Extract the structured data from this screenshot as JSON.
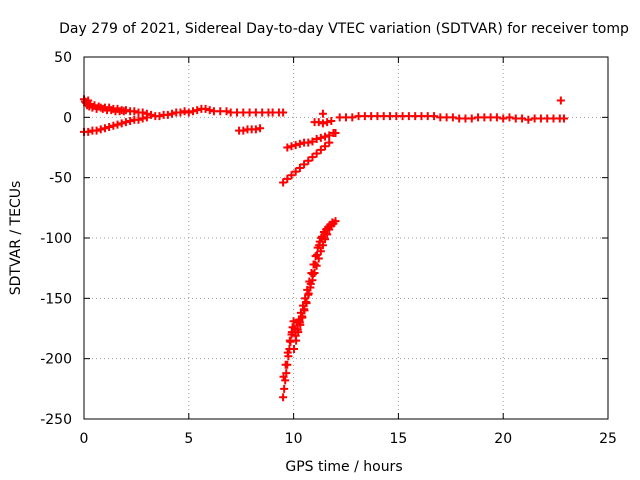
{
  "chart_data": {
    "type": "scatter",
    "title": "Day 279 of 2021, Sidereal Day-to-day VTEC variation (SDTVAR) for receiver tomp",
    "xlabel": "GPS time / hours",
    "ylabel": "SDTVAR / TECUs",
    "xlim": [
      0,
      25
    ],
    "ylim": [
      -250,
      50
    ],
    "xticks": [
      0,
      5,
      10,
      15,
      20,
      25
    ],
    "yticks": [
      -250,
      -200,
      -150,
      -100,
      -50,
      0,
      50
    ],
    "grid": true,
    "marker": "plus",
    "color": "#ff0000",
    "series": [
      {
        "points": [
          [
            0.0,
            15
          ],
          [
            0.05,
            13
          ],
          [
            0.1,
            12
          ],
          [
            0.15,
            10
          ],
          [
            0.2,
            14
          ],
          [
            0.25,
            9
          ],
          [
            0.3,
            11
          ],
          [
            0.4,
            8
          ],
          [
            0.5,
            10
          ],
          [
            0.6,
            7
          ],
          [
            0.7,
            9
          ],
          [
            0.8,
            8
          ],
          [
            0.9,
            7
          ],
          [
            1.0,
            8
          ],
          [
            1.1,
            6
          ],
          [
            1.2,
            8
          ],
          [
            1.3,
            6
          ],
          [
            1.4,
            7
          ],
          [
            1.5,
            5
          ],
          [
            1.6,
            7
          ],
          [
            1.7,
            5
          ],
          [
            1.8,
            6
          ],
          [
            1.9,
            5
          ],
          [
            2.0,
            6
          ],
          [
            2.2,
            5
          ],
          [
            2.4,
            5
          ],
          [
            2.6,
            4
          ],
          [
            2.8,
            4
          ],
          [
            3.0,
            3
          ],
          [
            3.2,
            2
          ],
          [
            3.4,
            1
          ],
          [
            3.6,
            1
          ],
          [
            3.8,
            2
          ],
          [
            4.0,
            2
          ],
          [
            4.2,
            3
          ],
          [
            4.4,
            4
          ],
          [
            4.6,
            4
          ],
          [
            4.8,
            5
          ],
          [
            5.0,
            4
          ],
          [
            5.2,
            5
          ],
          [
            5.4,
            6
          ],
          [
            5.6,
            7
          ],
          [
            5.8,
            7
          ],
          [
            6.0,
            6
          ],
          [
            6.2,
            5
          ],
          [
            6.5,
            5
          ],
          [
            6.8,
            5
          ],
          [
            7.0,
            4
          ],
          [
            7.3,
            4
          ],
          [
            7.6,
            4
          ],
          [
            7.9,
            4
          ],
          [
            8.2,
            4
          ],
          [
            8.5,
            4
          ],
          [
            8.8,
            4
          ],
          [
            9.0,
            4
          ],
          [
            9.3,
            4
          ],
          [
            9.5,
            4
          ]
        ]
      },
      {
        "points": [
          [
            0.0,
            -12
          ],
          [
            0.2,
            -12
          ],
          [
            0.4,
            -11
          ],
          [
            0.6,
            -11
          ],
          [
            0.8,
            -10
          ],
          [
            1.0,
            -9
          ],
          [
            1.2,
            -8
          ],
          [
            1.4,
            -7
          ],
          [
            1.6,
            -6
          ],
          [
            1.8,
            -5
          ],
          [
            2.0,
            -4
          ],
          [
            2.2,
            -3
          ],
          [
            2.4,
            -2
          ],
          [
            2.6,
            -2
          ],
          [
            2.8,
            -1
          ],
          [
            3.0,
            0
          ]
        ]
      },
      {
        "points": [
          [
            7.4,
            -11
          ],
          [
            7.6,
            -11
          ],
          [
            7.8,
            -10
          ],
          [
            8.0,
            -10
          ],
          [
            8.2,
            -10
          ],
          [
            8.4,
            -9
          ]
        ]
      },
      {
        "points": [
          [
            9.7,
            -25
          ],
          [
            9.9,
            -24
          ],
          [
            10.1,
            -23
          ],
          [
            10.3,
            -22
          ],
          [
            10.5,
            -21
          ],
          [
            10.7,
            -21
          ],
          [
            10.9,
            -20
          ],
          [
            11.1,
            -18
          ],
          [
            11.3,
            -17
          ],
          [
            11.5,
            -16
          ],
          [
            11.7,
            -15
          ],
          [
            11.9,
            -13
          ],
          [
            12.0,
            -13
          ]
        ]
      },
      {
        "points": [
          [
            9.5,
            -54
          ],
          [
            9.7,
            -51
          ],
          [
            9.9,
            -48
          ],
          [
            10.1,
            -45
          ],
          [
            10.3,
            -42
          ],
          [
            10.5,
            -39
          ],
          [
            10.7,
            -36
          ],
          [
            10.9,
            -33
          ],
          [
            11.1,
            -30
          ],
          [
            11.3,
            -27
          ],
          [
            11.5,
            -24
          ],
          [
            11.7,
            -21
          ]
        ]
      },
      {
        "points": [
          [
            11.0,
            -4
          ],
          [
            11.2,
            -4
          ],
          [
            11.4,
            -5
          ],
          [
            11.6,
            -4
          ],
          [
            11.8,
            -3
          ],
          [
            11.4,
            3
          ],
          [
            12.2,
            0
          ],
          [
            12.5,
            0
          ],
          [
            12.8,
            0
          ],
          [
            13.1,
            1
          ],
          [
            13.4,
            1
          ],
          [
            13.7,
            1
          ],
          [
            14.0,
            1
          ],
          [
            14.3,
            1
          ],
          [
            14.6,
            1
          ],
          [
            14.9,
            1
          ],
          [
            15.2,
            1
          ],
          [
            15.5,
            1
          ],
          [
            15.8,
            1
          ],
          [
            16.1,
            1
          ],
          [
            16.4,
            1
          ],
          [
            16.7,
            1
          ],
          [
            17.0,
            0
          ],
          [
            17.3,
            0
          ],
          [
            17.6,
            0
          ],
          [
            17.9,
            -1
          ],
          [
            18.2,
            -1
          ],
          [
            18.5,
            -1
          ],
          [
            18.8,
            0
          ],
          [
            19.1,
            0
          ],
          [
            19.4,
            0
          ],
          [
            19.7,
            0
          ],
          [
            20.0,
            -1
          ],
          [
            20.3,
            0
          ],
          [
            20.6,
            -1
          ],
          [
            20.9,
            -1
          ],
          [
            21.2,
            -2
          ],
          [
            21.5,
            -1
          ],
          [
            21.8,
            -1
          ],
          [
            22.1,
            -1
          ],
          [
            22.4,
            -1
          ],
          [
            22.7,
            -1
          ],
          [
            22.9,
            -1
          ],
          [
            22.75,
            14
          ]
        ]
      },
      {
        "points": [
          [
            9.5,
            -232
          ],
          [
            9.55,
            -225
          ],
          [
            9.6,
            -218
          ],
          [
            9.65,
            -212
          ],
          [
            9.7,
            -205
          ],
          [
            9.75,
            -198
          ],
          [
            9.8,
            -192
          ],
          [
            9.85,
            -186
          ],
          [
            9.9,
            -180
          ],
          [
            9.95,
            -174
          ],
          [
            10.0,
            -169
          ],
          [
            10.05,
            -175
          ],
          [
            10.1,
            -181
          ],
          [
            10.2,
            -176
          ],
          [
            10.3,
            -170
          ],
          [
            10.4,
            -165
          ],
          [
            10.5,
            -159
          ],
          [
            10.6,
            -153
          ],
          [
            10.7,
            -147
          ],
          [
            10.8,
            -141
          ],
          [
            10.9,
            -135
          ],
          [
            11.0,
            -129
          ],
          [
            11.1,
            -123
          ],
          [
            11.2,
            -117
          ],
          [
            11.3,
            -111
          ],
          [
            11.4,
            -106
          ],
          [
            11.5,
            -101
          ],
          [
            11.6,
            -97
          ],
          [
            11.7,
            -93
          ],
          [
            11.8,
            -90
          ],
          [
            11.9,
            -88
          ],
          [
            12.0,
            -86
          ],
          [
            9.52,
            -215
          ],
          [
            9.62,
            -205
          ],
          [
            9.72,
            -195
          ],
          [
            9.82,
            -185
          ],
          [
            9.92,
            -178
          ],
          [
            10.02,
            -192
          ],
          [
            10.12,
            -185
          ],
          [
            10.22,
            -178
          ],
          [
            10.32,
            -172
          ],
          [
            10.42,
            -166
          ],
          [
            10.52,
            -160
          ],
          [
            10.62,
            -154
          ],
          [
            10.72,
            -146
          ],
          [
            10.82,
            -138
          ],
          [
            10.92,
            -130
          ],
          [
            11.02,
            -122
          ],
          [
            11.12,
            -114
          ],
          [
            11.22,
            -106
          ],
          [
            11.32,
            -100
          ],
          [
            10.15,
            -170
          ],
          [
            10.25,
            -168
          ],
          [
            10.35,
            -162
          ],
          [
            10.45,
            -156
          ],
          [
            10.55,
            -150
          ],
          [
            10.65,
            -143
          ],
          [
            10.75,
            -136
          ],
          [
            10.85,
            -129
          ],
          [
            10.95,
            -122
          ],
          [
            11.05,
            -115
          ],
          [
            11.15,
            -108
          ],
          [
            11.25,
            -103
          ],
          [
            11.35,
            -99
          ],
          [
            11.45,
            -95
          ],
          [
            11.55,
            -93
          ],
          [
            11.65,
            -91
          ],
          [
            11.75,
            -89
          ],
          [
            11.85,
            -87
          ]
        ]
      }
    ]
  }
}
